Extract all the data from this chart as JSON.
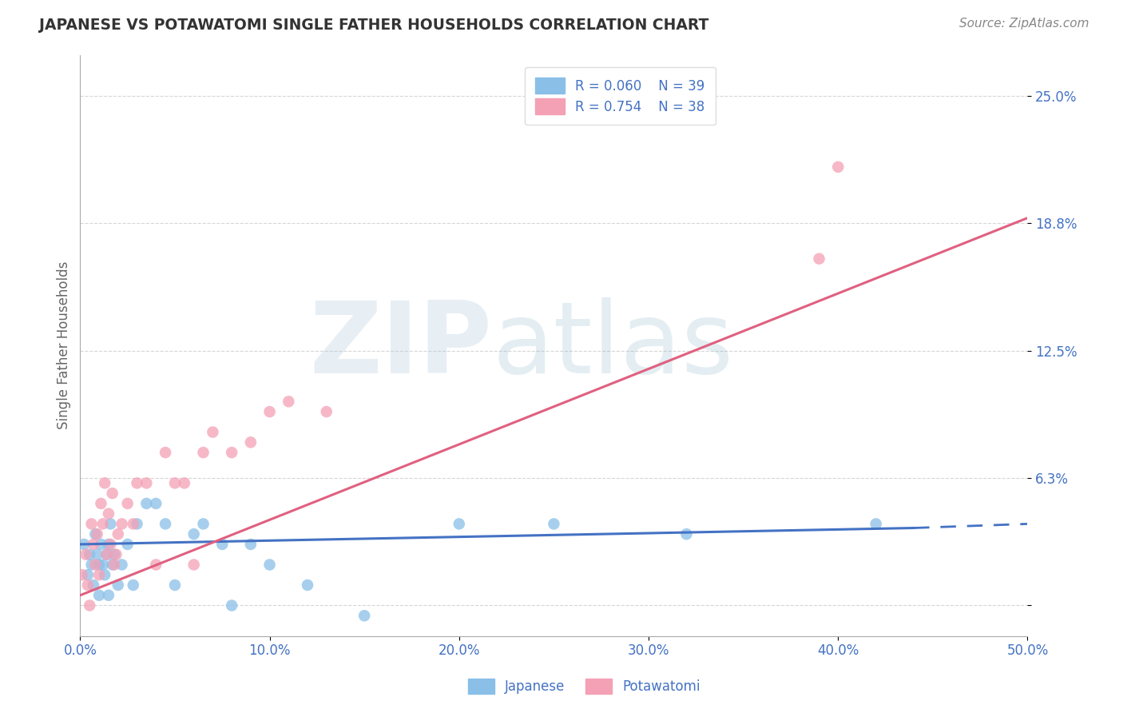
{
  "title": "JAPANESE VS POTAWATOMI SINGLE FATHER HOUSEHOLDS CORRELATION CHART",
  "source": "Source: ZipAtlas.com",
  "ylabel": "Single Father Households",
  "xlim": [
    0.0,
    0.5
  ],
  "ylim": [
    -0.015,
    0.27
  ],
  "xticks": [
    0.0,
    0.1,
    0.2,
    0.3,
    0.4,
    0.5
  ],
  "xtick_labels": [
    "0.0%",
    "10.0%",
    "20.0%",
    "30.0%",
    "40.0%",
    "50.0%"
  ],
  "yticks": [
    0.0,
    0.0625,
    0.125,
    0.1875,
    0.25
  ],
  "ytick_labels": [
    "",
    "6.3%",
    "12.5%",
    "18.8%",
    "25.0%"
  ],
  "legend_r_japanese": "R = 0.060",
  "legend_n_japanese": "N = 39",
  "legend_r_potawatomi": "R = 0.754",
  "legend_n_potawatomi": "N = 38",
  "color_japanese": "#8abfe8",
  "color_potawatomi": "#f4a0b5",
  "color_trendline_japanese": "#4472c4",
  "color_trendline_potawatomi": "#e06080",
  "color_grid": "#cccccc",
  "color_title": "#333333",
  "color_source": "#888888",
  "color_tick": "#4472c4",
  "japanese_x": [
    0.002,
    0.004,
    0.005,
    0.006,
    0.007,
    0.008,
    0.009,
    0.01,
    0.01,
    0.011,
    0.012,
    0.013,
    0.014,
    0.015,
    0.015,
    0.016,
    0.017,
    0.018,
    0.02,
    0.022,
    0.025,
    0.028,
    0.03,
    0.035,
    0.04,
    0.045,
    0.05,
    0.06,
    0.065,
    0.075,
    0.08,
    0.09,
    0.1,
    0.12,
    0.15,
    0.2,
    0.25,
    0.32,
    0.42
  ],
  "japanese_y": [
    0.03,
    0.015,
    0.025,
    0.02,
    0.01,
    0.035,
    0.025,
    0.02,
    0.005,
    0.03,
    0.02,
    0.015,
    0.025,
    0.005,
    0.03,
    0.04,
    0.02,
    0.025,
    0.01,
    0.02,
    0.03,
    0.01,
    0.04,
    0.05,
    0.05,
    0.04,
    0.01,
    0.035,
    0.04,
    0.03,
    0.0,
    0.03,
    0.02,
    0.01,
    -0.005,
    0.04,
    0.04,
    0.035,
    0.04
  ],
  "potawatomi_x": [
    0.001,
    0.003,
    0.004,
    0.005,
    0.006,
    0.007,
    0.008,
    0.009,
    0.01,
    0.011,
    0.012,
    0.013,
    0.014,
    0.015,
    0.016,
    0.017,
    0.018,
    0.019,
    0.02,
    0.022,
    0.025,
    0.028,
    0.03,
    0.035,
    0.04,
    0.045,
    0.05,
    0.055,
    0.06,
    0.065,
    0.07,
    0.08,
    0.09,
    0.1,
    0.11,
    0.13,
    0.39,
    0.4
  ],
  "potawatomi_y": [
    0.015,
    0.025,
    0.01,
    0.0,
    0.04,
    0.03,
    0.02,
    0.035,
    0.015,
    0.05,
    0.04,
    0.06,
    0.025,
    0.045,
    0.03,
    0.055,
    0.02,
    0.025,
    0.035,
    0.04,
    0.05,
    0.04,
    0.06,
    0.06,
    0.02,
    0.075,
    0.06,
    0.06,
    0.02,
    0.075,
    0.085,
    0.075,
    0.08,
    0.095,
    0.1,
    0.095,
    0.17,
    0.215
  ],
  "j_trend_x0": 0.0,
  "j_trend_x1": 0.44,
  "j_trend_x_dash": 0.5,
  "j_trend_y0": 0.03,
  "j_trend_y1": 0.038,
  "j_trend_y_dash": 0.04,
  "p_trend_x0": 0.0,
  "p_trend_x1": 0.5,
  "p_trend_y0": 0.005,
  "p_trend_y1": 0.19
}
